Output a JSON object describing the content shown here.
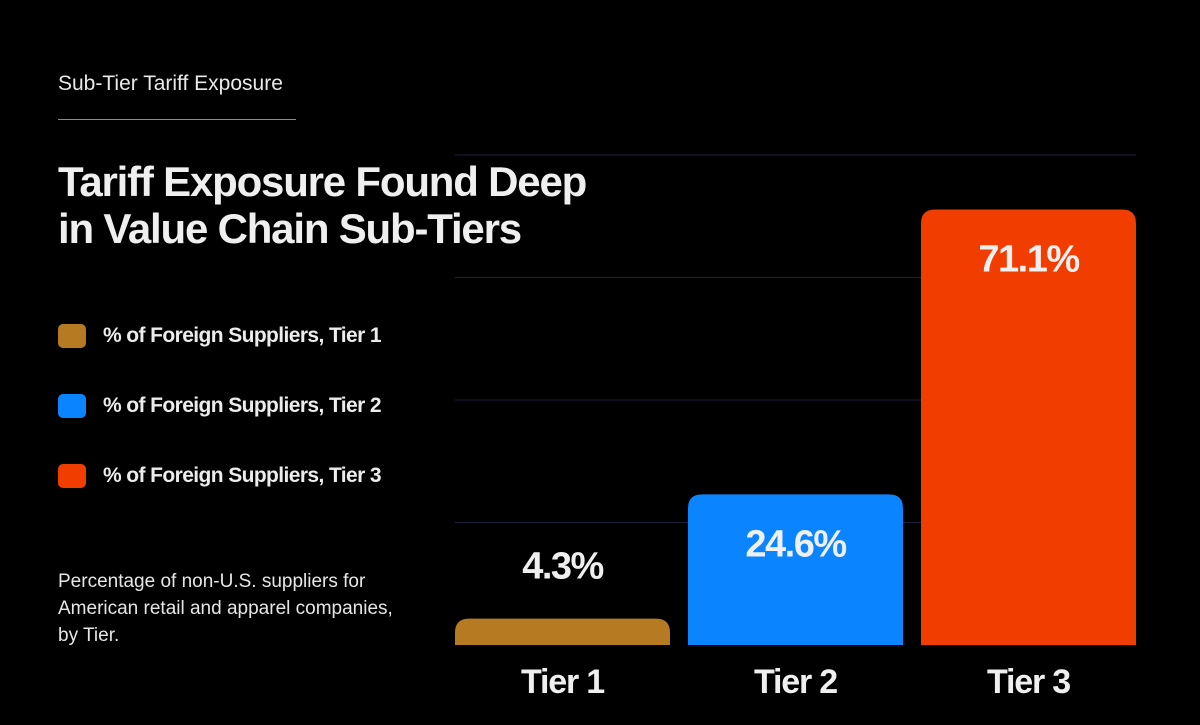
{
  "eyebrow": "Sub-Tier Tariff Exposure",
  "title_line1": "Tariff Exposure Found Deep",
  "title_line2": "in Value Chain Sub-Tiers",
  "legend": [
    {
      "label": "% of Foreign Suppliers, Tier 1",
      "color": "#b57a22"
    },
    {
      "label": "% of Foreign Suppliers, Tier 2",
      "color": "#0a84ff"
    },
    {
      "label": "% of Foreign Suppliers, Tier 3",
      "color": "#f23d00"
    }
  ],
  "note": "Percentage of non-U.S. suppliers for American retail and apparel companies, by Tier.",
  "chart_data": {
    "type": "bar",
    "categories": [
      "Tier 1",
      "Tier 2",
      "Tier 3"
    ],
    "values": [
      4.3,
      24.6,
      71.1
    ],
    "value_labels": [
      "4.3%",
      "24.6%",
      "71.1%"
    ],
    "colors": [
      "#b57a22",
      "#0a84ff",
      "#f23d00"
    ],
    "title": "",
    "xlabel": "",
    "ylabel": "",
    "ylim": [
      0,
      80
    ],
    "grid": true,
    "legend_position": "left"
  }
}
